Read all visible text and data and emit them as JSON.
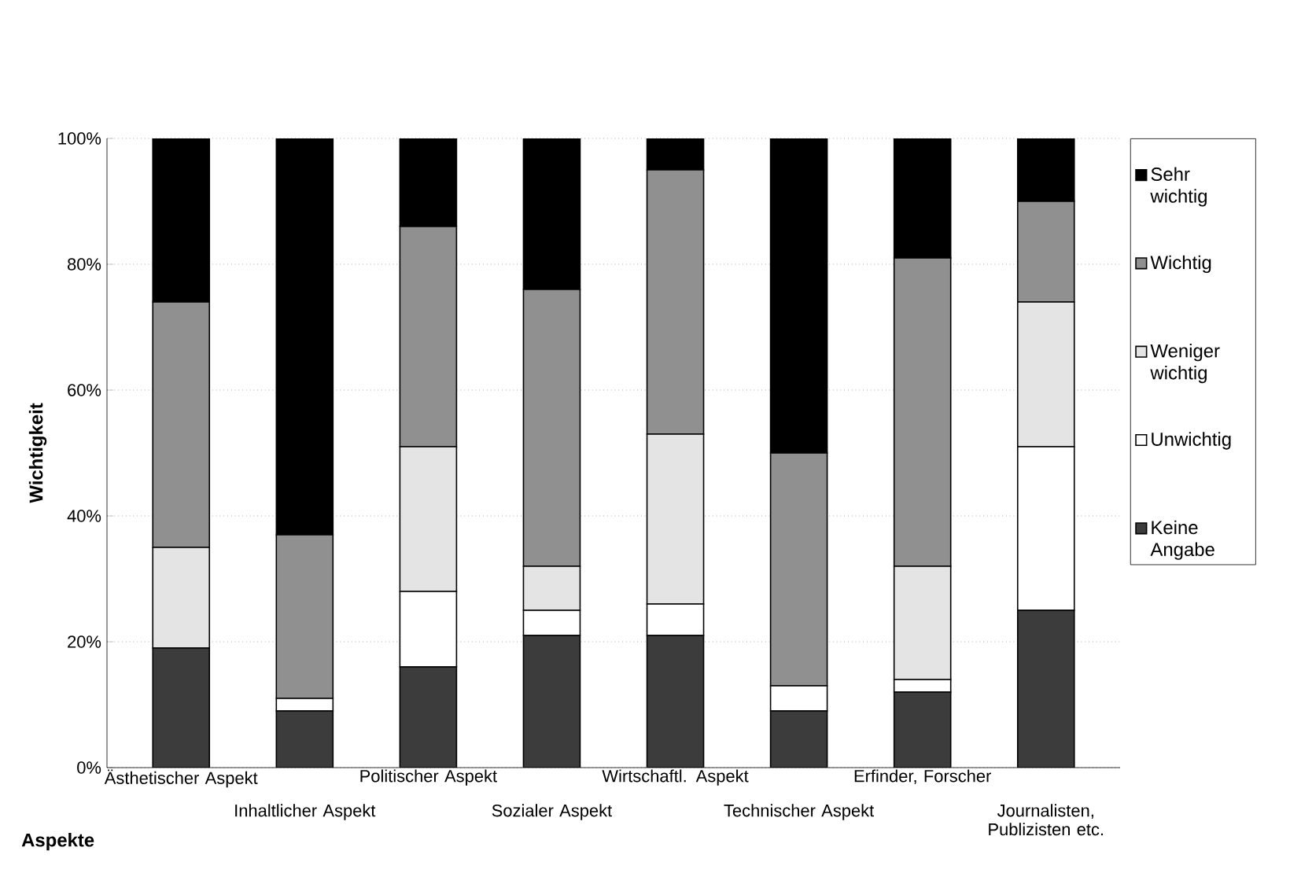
{
  "chart_data": {
    "type": "bar",
    "stacked": true,
    "xlabel": "Aspekte",
    "ylabel": "Wichtigkeit",
    "categories": [
      "Ästhetischer Aspekt",
      "Inhaltlicher Aspekt",
      "Politischer Aspekt",
      "Sozialer Aspekt",
      "Wirtschaftl. Aspekt",
      "Technischer Aspekt",
      "Erfinder, Forscher",
      "Journalisten, Publizisten etc."
    ],
    "series": [
      {
        "name": "Keine Angabe",
        "color": "#3c3c3c",
        "values": [
          19,
          9,
          16,
          21,
          21,
          9,
          12,
          25
        ]
      },
      {
        "name": "Unwichtig",
        "color": "#ffffff",
        "values": [
          0,
          2,
          12,
          4,
          5,
          4,
          2,
          26
        ]
      },
      {
        "name": "Weniger wichtig",
        "color": "#e4e4e4",
        "values": [
          16,
          0,
          23,
          7,
          27,
          0,
          18,
          23
        ]
      },
      {
        "name": "Wichtig",
        "color": "#909090",
        "values": [
          39,
          26,
          35,
          44,
          42,
          37,
          49,
          16
        ]
      },
      {
        "name": "Sehr wichtig",
        "color": "#000000",
        "values": [
          26,
          63,
          14,
          24,
          5,
          50,
          19,
          10
        ]
      }
    ],
    "ylim": [
      0,
      100
    ],
    "yticks": [
      {
        "value": 0,
        "label": "0%"
      },
      {
        "value": 20,
        "label": "20%"
      },
      {
        "value": 40,
        "label": "40%"
      },
      {
        "value": 60,
        "label": "60%"
      },
      {
        "value": 80,
        "label": "80%"
      },
      {
        "value": 100,
        "label": "100%"
      }
    ],
    "grid": "y",
    "legend": "right"
  }
}
